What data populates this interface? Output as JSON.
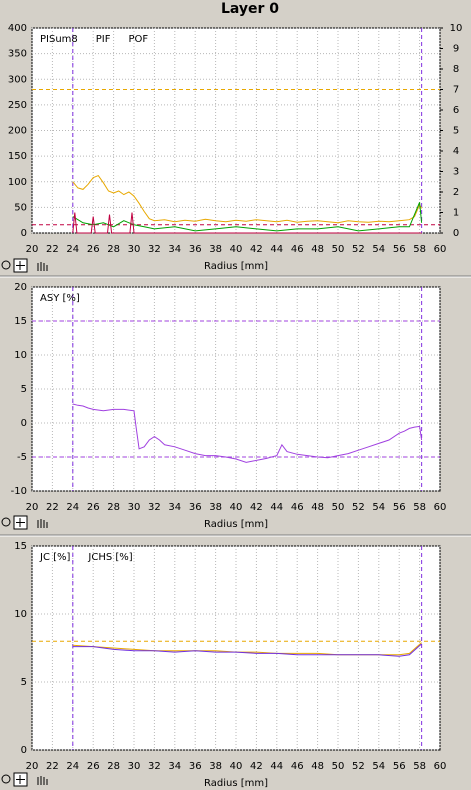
{
  "title": "Layer 0",
  "chart_data": [
    {
      "type": "line",
      "xlabel": "Radius [mm]",
      "grid": true,
      "xlim": [
        20,
        60
      ],
      "xticks": [
        20,
        22,
        24,
        26,
        28,
        30,
        32,
        34,
        36,
        38,
        40,
        42,
        44,
        46,
        48,
        50,
        52,
        54,
        56,
        58,
        60
      ],
      "ylim": [
        0,
        400
      ],
      "yticks": [
        0,
        50,
        100,
        150,
        200,
        250,
        300,
        350,
        400
      ],
      "y2lim": [
        0,
        10
      ],
      "y2ticks": [
        0,
        1,
        2,
        3,
        4,
        5,
        6,
        7,
        8,
        9,
        10
      ],
      "markers": [
        24,
        58.2
      ],
      "thresholds": [
        {
          "value": 280,
          "color": "#e8a800"
        },
        {
          "value": 0.4,
          "color": "#c00040",
          "axis": "y2"
        }
      ],
      "series": [
        {
          "name": "PISum8",
          "color": "#e8a800",
          "x": [
            24,
            24.5,
            25,
            25.5,
            26,
            26.5,
            27,
            27.5,
            28,
            28.5,
            29,
            29.5,
            30,
            30.5,
            31,
            31.5,
            32,
            33,
            34,
            35,
            36,
            37,
            38,
            39,
            40,
            41,
            42,
            43,
            44,
            45,
            46,
            47,
            48,
            49,
            50,
            51,
            52,
            53,
            54,
            55,
            56,
            57,
            57.5,
            58,
            58.2
          ],
          "values": [
            100,
            88,
            85,
            95,
            108,
            112,
            98,
            82,
            78,
            82,
            75,
            80,
            72,
            58,
            42,
            28,
            24,
            26,
            22,
            25,
            23,
            27,
            24,
            22,
            25,
            23,
            26,
            24,
            22,
            25,
            21,
            23,
            24,
            22,
            20,
            24,
            22,
            21,
            23,
            22,
            24,
            26,
            32,
            55,
            48
          ]
        },
        {
          "name": "PIF",
          "color": "#00a000",
          "axis": "y2",
          "x": [
            24,
            25,
            26,
            27,
            28,
            29,
            30,
            31,
            32,
            34,
            36,
            38,
            40,
            42,
            44,
            46,
            48,
            50,
            52,
            54,
            56,
            57,
            58,
            58.2
          ],
          "values": [
            0.8,
            0.5,
            0.4,
            0.5,
            0.3,
            0.6,
            0.4,
            0.3,
            0.2,
            0.3,
            0.1,
            0.2,
            0.3,
            0.2,
            0.1,
            0.2,
            0.2,
            0.3,
            0.1,
            0.2,
            0.3,
            0.3,
            1.5,
            0.5
          ]
        },
        {
          "name": "POF",
          "color": "#c00040",
          "axis": "y2",
          "x": [
            24,
            24.2,
            24.4,
            25.8,
            26,
            26.2,
            27.4,
            27.6,
            27.8,
            29.6,
            29.8,
            30,
            31,
            58.2
          ],
          "values": [
            0,
            1,
            0,
            0,
            0.8,
            0,
            0,
            0.9,
            0,
            0,
            1,
            0,
            0,
            0
          ]
        }
      ]
    },
    {
      "type": "line",
      "xlabel": "Radius [mm]",
      "grid": true,
      "xlim": [
        20,
        60
      ],
      "xticks": [
        20,
        22,
        24,
        26,
        28,
        30,
        32,
        34,
        36,
        38,
        40,
        42,
        44,
        46,
        48,
        50,
        52,
        54,
        56,
        58,
        60
      ],
      "ylim": [
        -10,
        20
      ],
      "yticks": [
        -10,
        -5,
        0,
        5,
        10,
        15,
        20
      ],
      "markers": [
        24,
        58.2
      ],
      "thresholds": [
        {
          "value": 15,
          "color": "#a040e0"
        },
        {
          "value": -5,
          "color": "#a040e0"
        }
      ],
      "series": [
        {
          "name": "ASY [%]",
          "color": "#a040e0",
          "x": [
            24,
            24.5,
            25,
            25.5,
            26,
            27,
            28,
            29,
            30,
            30.2,
            30.5,
            31,
            31.5,
            32,
            32.5,
            33,
            34,
            35,
            36,
            37,
            38,
            39,
            40,
            41,
            42,
            43,
            44,
            44.5,
            45,
            46,
            47,
            48,
            49,
            50,
            51,
            52,
            53,
            54,
            55,
            56,
            56.5,
            57,
            57.5,
            58,
            58.2
          ],
          "values": [
            2.8,
            2.6,
            2.5,
            2.2,
            2.0,
            1.8,
            2.0,
            2.0,
            1.8,
            -0.5,
            -3.8,
            -3.5,
            -2.5,
            -2.0,
            -2.5,
            -3.2,
            -3.5,
            -4.0,
            -4.5,
            -4.8,
            -4.8,
            -5.0,
            -5.3,
            -5.8,
            -5.5,
            -5.2,
            -4.8,
            -3.2,
            -4.2,
            -4.6,
            -4.8,
            -5.0,
            -5.1,
            -4.8,
            -4.5,
            -4.0,
            -3.5,
            -3.0,
            -2.5,
            -1.5,
            -1.2,
            -0.8,
            -0.6,
            -0.5,
            -2.5
          ]
        }
      ]
    },
    {
      "type": "line",
      "xlabel": "Radius [mm]",
      "grid": true,
      "xlim": [
        20,
        60
      ],
      "xticks": [
        20,
        22,
        24,
        26,
        28,
        30,
        32,
        34,
        36,
        38,
        40,
        42,
        44,
        46,
        48,
        50,
        52,
        54,
        56,
        58,
        60
      ],
      "ylim": [
        0,
        15
      ],
      "yticks": [
        0,
        5,
        10,
        15
      ],
      "markers": [
        24,
        58.2
      ],
      "thresholds": [
        {
          "value": 8,
          "color": "#e8a800"
        }
      ],
      "series": [
        {
          "name": "JC [%]",
          "color": "#e8a800",
          "x": [
            24,
            26,
            28,
            30,
            32,
            34,
            36,
            38,
            40,
            42,
            44,
            46,
            48,
            50,
            52,
            54,
            56,
            57,
            58.2
          ],
          "values": [
            7.7,
            7.6,
            7.5,
            7.4,
            7.3,
            7.3,
            7.3,
            7.3,
            7.2,
            7.2,
            7.1,
            7.1,
            7.1,
            7.0,
            7.0,
            7.0,
            7.0,
            7.1,
            7.9
          ]
        },
        {
          "name": "JCHS [%]",
          "color": "#7030e0",
          "x": [
            24,
            26,
            28,
            30,
            32,
            34,
            36,
            38,
            40,
            42,
            44,
            46,
            48,
            50,
            52,
            54,
            56,
            57,
            58.2
          ],
          "values": [
            7.6,
            7.6,
            7.4,
            7.3,
            7.3,
            7.2,
            7.3,
            7.2,
            7.2,
            7.1,
            7.1,
            7.0,
            7.0,
            7.0,
            7.0,
            7.0,
            6.9,
            7.0,
            7.8
          ]
        }
      ]
    }
  ]
}
